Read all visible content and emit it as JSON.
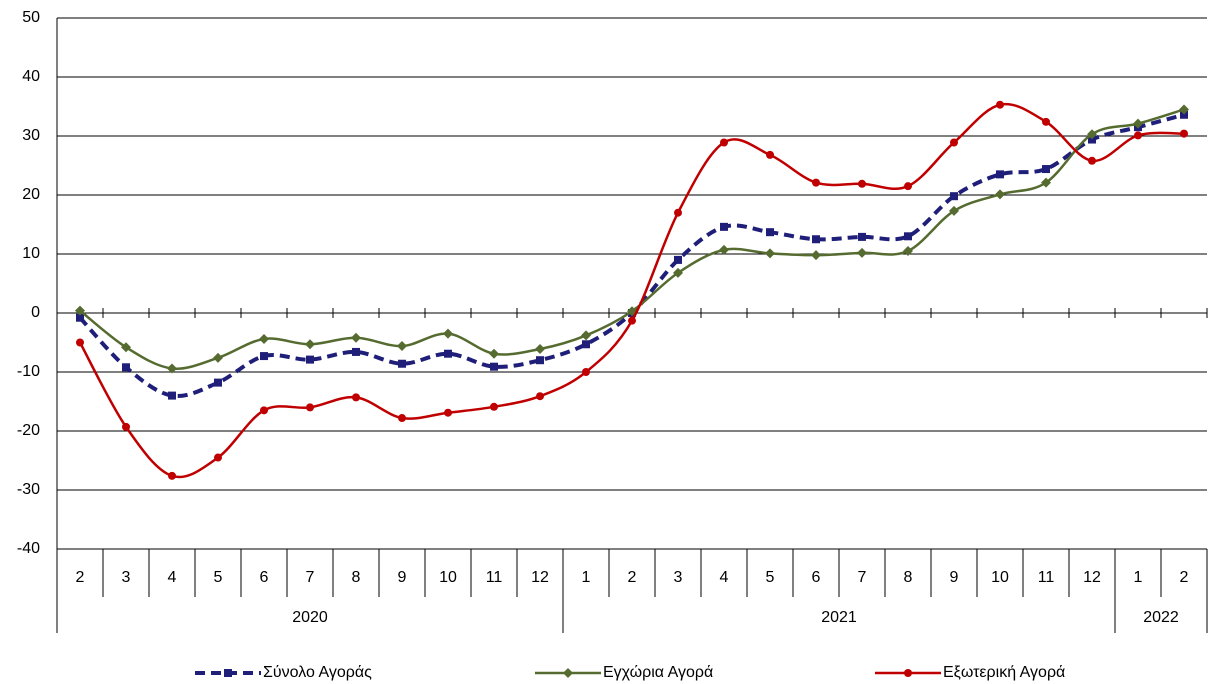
{
  "chart_data": {
    "type": "line",
    "categories": [
      "2",
      "3",
      "4",
      "5",
      "6",
      "7",
      "8",
      "9",
      "10",
      "11",
      "12",
      "1",
      "2",
      "3",
      "4",
      "5",
      "6",
      "7",
      "8",
      "9",
      "10",
      "11",
      "12",
      "1",
      "2"
    ],
    "category_groups": [
      {
        "name": "2020",
        "span": 11
      },
      {
        "name": "2021",
        "span": 12
      },
      {
        "name": "2022",
        "span": 2
      }
    ],
    "ylim": [
      -40,
      50
    ],
    "yticks": [
      -40,
      -30,
      -20,
      -10,
      0,
      10,
      20,
      30,
      40,
      50
    ],
    "grid": true,
    "legend": "bottom",
    "series": [
      {
        "name": "Σύνολο Αγοράς",
        "color": "#1f1f7a",
        "dashed": true,
        "marker": "square",
        "values": [
          -0.8,
          -9.2,
          -14,
          -11.8,
          -7.3,
          -7.9,
          -6.6,
          -8.6,
          -6.9,
          -9.1,
          -8,
          -5.3,
          0,
          9,
          14.6,
          13.7,
          12.5,
          12.9,
          13,
          19.8,
          23.5,
          24.4,
          29.4,
          31.5,
          33.6
        ]
      },
      {
        "name": "Εγχώρια Αγορά",
        "color": "#556b2f",
        "dashed": false,
        "marker": "diamond",
        "values": [
          0.4,
          -5.8,
          -9.4,
          -7.6,
          -4.4,
          -5.3,
          -4.2,
          -5.6,
          -3.5,
          -6.9,
          -6.1,
          -3.8,
          0.3,
          6.8,
          10.7,
          10.1,
          9.8,
          10.2,
          10.5,
          17.3,
          20.1,
          22.1,
          30.3,
          32.1,
          34.5
        ]
      },
      {
        "name": "Εξωτερική Αγορά",
        "color": "#c00000",
        "dashed": false,
        "marker": "circle",
        "values": [
          -5,
          -19.3,
          -27.6,
          -24.5,
          -16.5,
          -16,
          -14.3,
          -17.8,
          -16.9,
          -15.9,
          -14.1,
          -10,
          -1.3,
          17,
          28.9,
          26.8,
          22.1,
          21.9,
          21.5,
          28.9,
          35.3,
          32.4,
          25.8,
          30.1,
          30.4
        ]
      }
    ]
  }
}
